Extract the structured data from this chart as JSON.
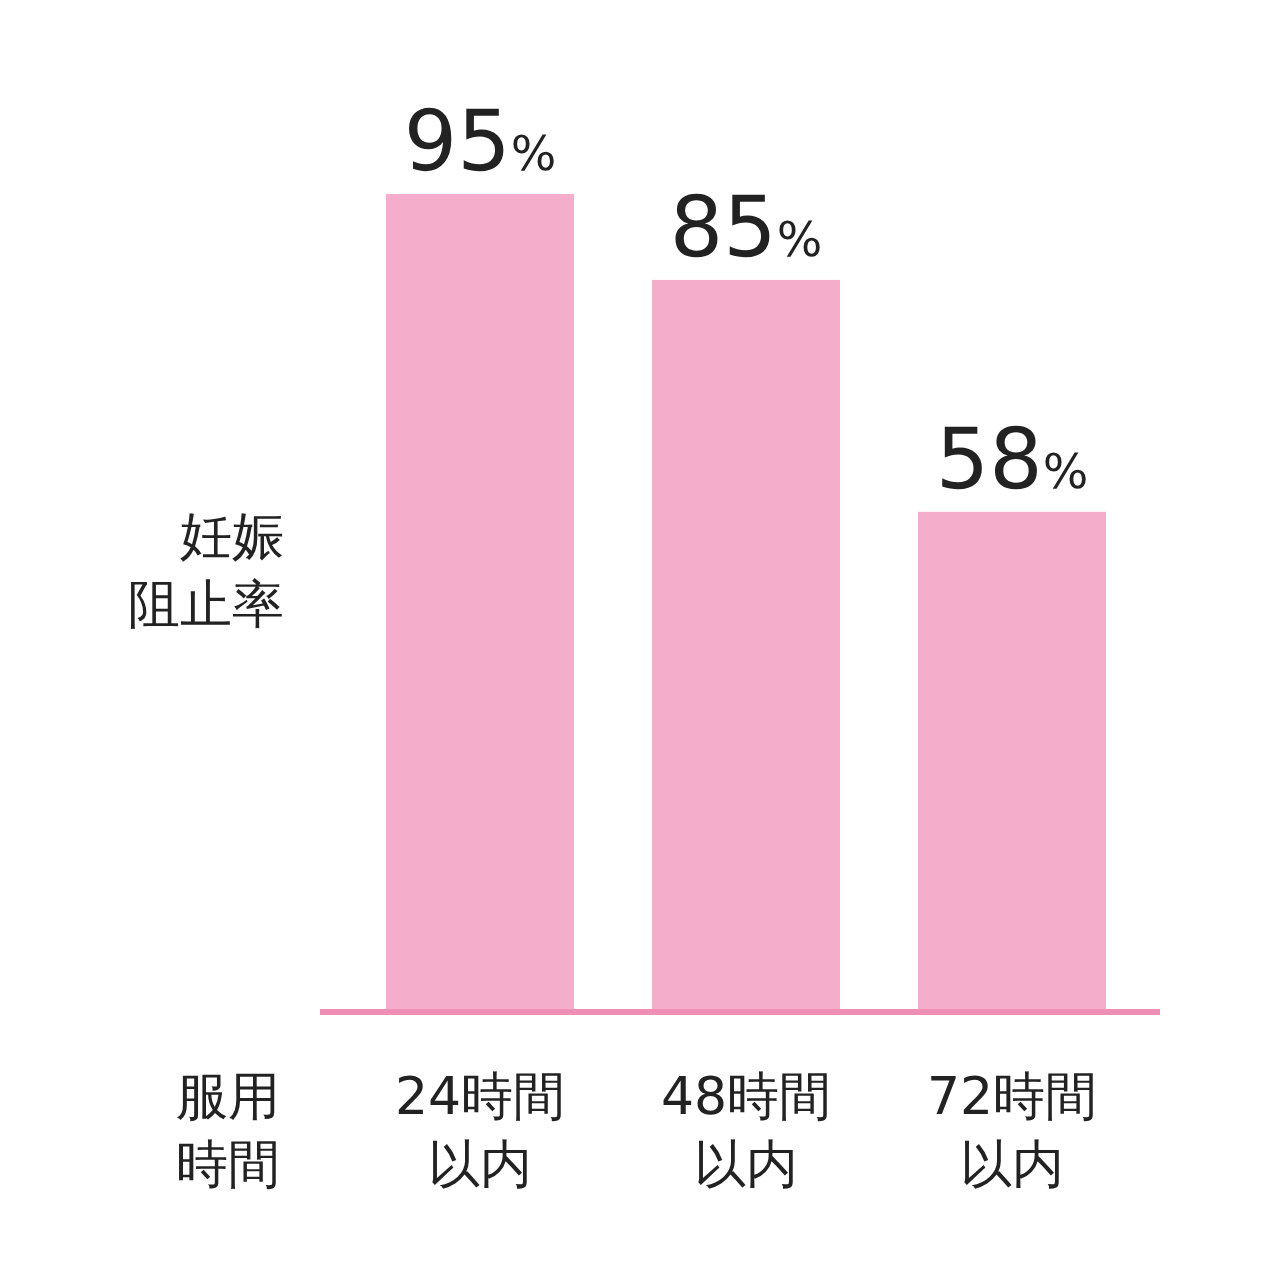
{
  "chart_data": {
    "type": "bar",
    "ylabel": "妊娠阻止率",
    "xlabel": "服用時間",
    "categories": [
      "24時間以内",
      "48時間以内",
      "72時間以内"
    ],
    "values": [
      95,
      85,
      58
    ],
    "value_labels": [
      "95%",
      "85%",
      "58%"
    ],
    "color": "#f4aecb"
  }
}
